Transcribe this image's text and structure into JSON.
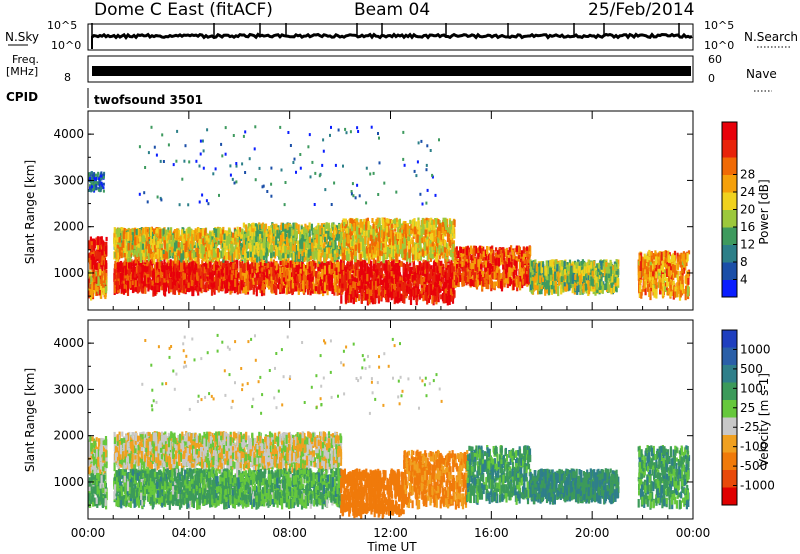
{
  "header": {
    "station": "Dome C East (fitACF)",
    "beam": "Beam 04",
    "date": "25/Feb/2014"
  },
  "status_panels": {
    "nsky_label": "N.Sky",
    "nsky_ticks": [
      "10^5",
      "10^0"
    ],
    "nsearch_label": "N.Search",
    "nsearch_ticks": [
      "10^5",
      "10^0"
    ],
    "freq_label_line1": "Freq.",
    "freq_label_line2": "[MHz]",
    "freq_ticks": [
      "8"
    ],
    "nave_label": "Nave",
    "nave_ticks": [
      "60",
      "0"
    ],
    "cpid_label": "CPID",
    "cpid_text": "twofsound 3501"
  },
  "colors": {
    "power_scale": [
      "#0a1eff",
      "#1b4fa8",
      "#2c7f88",
      "#3e9a5e",
      "#9cc83c",
      "#f0d21e",
      "#f5a00a",
      "#f06a05",
      "#e8230a",
      "#e8000a"
    ],
    "velocity_scale": [
      "#1f3fbf",
      "#2a5fa8",
      "#2f7f8a",
      "#3c9a5a",
      "#66c83c",
      "#c8c8c8",
      "#f0a020",
      "#f07a0a",
      "#e84a0a",
      "#e00000"
    ]
  },
  "chart_data": [
    {
      "type": "heatmap",
      "panel": "power",
      "xlabel": "",
      "ylabel": "Slant Range [km]",
      "y_ticks": [
        "1000",
        "2000",
        "3000",
        "4000"
      ],
      "ylim": [
        200,
        4500
      ],
      "xlim_hours": [
        0,
        24
      ],
      "colorbar_label": "Power [dB]",
      "colorbar_ticks": [
        "4",
        "8",
        "12",
        "16",
        "20",
        "24",
        "28"
      ],
      "colorbar_range": [
        0,
        30
      ],
      "scatter_regions": [
        {
          "t": [
            0.0,
            0.7
          ],
          "r": [
            1200,
            1800
          ],
          "value": 26
        },
        {
          "t": [
            0.0,
            0.7
          ],
          "r": [
            600,
            1100
          ],
          "value": 20
        },
        {
          "t": [
            0.0,
            0.6
          ],
          "r": [
            2800,
            3200
          ],
          "value": 6
        },
        {
          "t": [
            1.0,
            6.0
          ],
          "r": [
            700,
            1300
          ],
          "value": 27
        },
        {
          "t": [
            1.0,
            6.0
          ],
          "r": [
            1400,
            2000
          ],
          "value": 17
        },
        {
          "t": [
            6.0,
            10.0
          ],
          "r": [
            700,
            1300
          ],
          "value": 24
        },
        {
          "t": [
            6.0,
            10.0
          ],
          "r": [
            1400,
            2100
          ],
          "value": 15
        },
        {
          "t": [
            10.0,
            14.5
          ],
          "r": [
            500,
            1300
          ],
          "value": 28
        },
        {
          "t": [
            10.0,
            14.5
          ],
          "r": [
            1400,
            2200
          ],
          "value": 18
        },
        {
          "t": [
            14.5,
            17.5
          ],
          "r": [
            800,
            1600
          ],
          "value": 24
        },
        {
          "t": [
            17.5,
            21.0
          ],
          "r": [
            700,
            1300
          ],
          "value": 14
        },
        {
          "t": [
            21.8,
            23.8
          ],
          "r": [
            600,
            1500
          ],
          "value": 20
        },
        {
          "t": [
            2.0,
            14.0
          ],
          "r": [
            2500,
            4200
          ],
          "value": 6
        }
      ]
    },
    {
      "type": "heatmap",
      "panel": "velocity",
      "xlabel": "Time UT",
      "ylabel": "Slant Range [km]",
      "y_ticks": [
        "1000",
        "2000",
        "3000",
        "4000"
      ],
      "x_ticks": [
        "00:00",
        "04:00",
        "08:00",
        "12:00",
        "16:00",
        "20:00",
        "00:00"
      ],
      "ylim": [
        200,
        4500
      ],
      "xlim_hours": [
        0,
        24
      ],
      "colorbar_label": "Velocity [m s-1]",
      "colorbar_ticks": [
        "1000",
        "500",
        "100",
        "25",
        "-25",
        "-100",
        "-500",
        "-1000"
      ],
      "scatter_regions": [
        {
          "t": [
            0.0,
            0.7
          ],
          "r": [
            1300,
            2000
          ],
          "value": 0
        },
        {
          "t": [
            0.0,
            0.7
          ],
          "r": [
            600,
            1200
          ],
          "value": 80
        },
        {
          "t": [
            1.0,
            10.0
          ],
          "r": [
            1400,
            2100
          ],
          "value": 0
        },
        {
          "t": [
            1.0,
            10.0
          ],
          "r": [
            600,
            1300
          ],
          "value": 90
        },
        {
          "t": [
            10.0,
            12.5
          ],
          "r": [
            400,
            1300
          ],
          "value": -200
        },
        {
          "t": [
            12.5,
            15.0
          ],
          "r": [
            600,
            1700
          ],
          "value": -120
        },
        {
          "t": [
            15.0,
            17.5
          ],
          "r": [
            700,
            1800
          ],
          "value": 120
        },
        {
          "t": [
            17.5,
            21.0
          ],
          "r": [
            700,
            1300
          ],
          "value": 150
        },
        {
          "t": [
            21.8,
            23.8
          ],
          "r": [
            600,
            1800
          ],
          "value": 110
        },
        {
          "t": [
            2.0,
            14.0
          ],
          "r": [
            2500,
            4200
          ],
          "value": 0
        }
      ]
    }
  ]
}
